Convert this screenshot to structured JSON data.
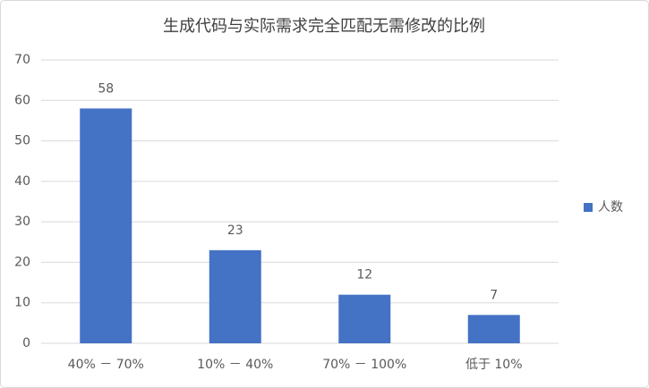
{
  "chart_data": {
    "type": "bar",
    "title": "生成代码与实际需求完全匹配无需修改的比例",
    "categories": [
      "40% － 70%",
      "10% － 40%",
      "70% － 100%",
      "低于 10%"
    ],
    "series": [
      {
        "name": "人数",
        "color": "#4472c4",
        "values": [
          58,
          23,
          12,
          7
        ]
      }
    ],
    "ylim": [
      0,
      70
    ],
    "yticks": [
      0,
      10,
      20,
      30,
      40,
      50,
      60,
      70
    ],
    "grid": true,
    "legend": "right",
    "data_labels": true
  }
}
